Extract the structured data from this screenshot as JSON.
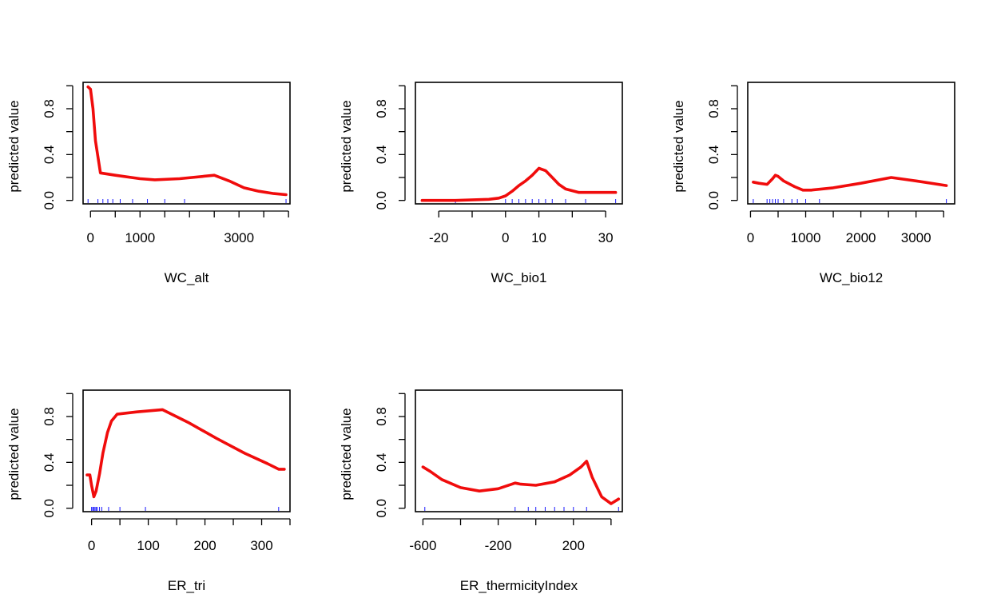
{
  "colors": {
    "curve": "#f00c0c",
    "rug": "#1a1aff",
    "axis": "#000000"
  },
  "chart_data": [
    {
      "type": "line",
      "xlabel": "WC_alt",
      "ylabel": "predicted value",
      "xlim": [
        -150,
        4030
      ],
      "ylim": [
        -0.03,
        1.03
      ],
      "xticks": [
        0,
        500,
        1000,
        1500,
        2000,
        2500,
        3000,
        3500,
        4000
      ],
      "xtick_labels": [
        "0",
        "",
        "1000",
        "",
        "",
        "",
        "3000",
        "",
        ""
      ],
      "yticks": [
        0,
        0.2,
        0.4,
        0.6,
        0.8,
        1.0
      ],
      "ytick_labels": [
        "0.0",
        "",
        "0.4",
        "",
        "0.8",
        ""
      ],
      "x": [
        -50,
        0,
        50,
        100,
        200,
        500,
        1000,
        1300,
        1800,
        2500,
        2800,
        3100,
        3400,
        3700,
        3950
      ],
      "y": [
        0.99,
        0.97,
        0.8,
        0.52,
        0.24,
        0.22,
        0.19,
        0.18,
        0.19,
        0.22,
        0.17,
        0.11,
        0.08,
        0.06,
        0.05
      ],
      "rug": [
        -50,
        150,
        250,
        350,
        450,
        600,
        850,
        1150,
        1500,
        1900,
        3950
      ]
    },
    {
      "type": "line",
      "xlabel": "WC_bio1",
      "ylabel": "predicted value",
      "xlim": [
        -27,
        35
      ],
      "ylim": [
        -0.03,
        1.03
      ],
      "xticks": [
        -20,
        -10,
        0,
        10,
        20,
        30
      ],
      "xtick_labels": [
        "-20",
        "",
        "0",
        "10",
        "",
        "30"
      ],
      "yticks": [
        0,
        0.2,
        0.4,
        0.6,
        0.8,
        1.0
      ],
      "ytick_labels": [
        "0.0",
        "",
        "0.4",
        "",
        "0.8",
        ""
      ],
      "x": [
        -25,
        -15,
        -5,
        -2,
        0,
        2,
        4,
        6,
        8,
        10,
        12,
        14,
        16,
        18,
        22,
        26,
        30,
        33
      ],
      "y": [
        0.0,
        0.0,
        0.01,
        0.02,
        0.04,
        0.08,
        0.13,
        0.17,
        0.22,
        0.28,
        0.26,
        0.2,
        0.14,
        0.1,
        0.07,
        0.07,
        0.07,
        0.07
      ],
      "rug": [
        -15,
        0,
        2,
        4,
        6,
        8,
        10,
        12,
        14,
        18,
        24,
        33
      ]
    },
    {
      "type": "line",
      "xlabel": "WC_bio12",
      "ylabel": "predicted value",
      "xlim": [
        -50,
        3700
      ],
      "ylim": [
        -0.03,
        1.03
      ],
      "xticks": [
        0,
        500,
        1000,
        1500,
        2000,
        2500,
        3000,
        3500
      ],
      "xtick_labels": [
        "0",
        "",
        "1000",
        "",
        "2000",
        "",
        "3000",
        ""
      ],
      "yticks": [
        0,
        0.2,
        0.4,
        0.6,
        0.8,
        1.0
      ],
      "ytick_labels": [
        "0.0",
        "",
        "0.4",
        "",
        "0.8",
        ""
      ],
      "x": [
        50,
        150,
        300,
        400,
        450,
        500,
        600,
        800,
        950,
        1100,
        1500,
        2000,
        2550,
        3000,
        3550
      ],
      "y": [
        0.16,
        0.15,
        0.14,
        0.19,
        0.22,
        0.21,
        0.17,
        0.12,
        0.09,
        0.09,
        0.11,
        0.15,
        0.2,
        0.17,
        0.13
      ],
      "rug": [
        50,
        300,
        350,
        400,
        450,
        500,
        600,
        750,
        850,
        1000,
        1250,
        3550
      ]
    },
    {
      "type": "line",
      "xlabel": "ER_tri",
      "ylabel": "predicted value",
      "xlim": [
        -15,
        350
      ],
      "ylim": [
        -0.03,
        1.03
      ],
      "xticks": [
        0,
        50,
        100,
        150,
        200,
        250,
        300,
        350
      ],
      "xtick_labels": [
        "0",
        "",
        "100",
        "",
        "200",
        "",
        "300",
        ""
      ],
      "yticks": [
        0,
        0.2,
        0.4,
        0.6,
        0.8,
        1.0
      ],
      "ytick_labels": [
        "0.0",
        "",
        "0.4",
        "",
        "0.8",
        ""
      ],
      "x": [
        -8,
        -3,
        0,
        4,
        8,
        14,
        20,
        28,
        35,
        45,
        80,
        125,
        170,
        220,
        270,
        310,
        330,
        340
      ],
      "y": [
        0.29,
        0.29,
        0.2,
        0.1,
        0.15,
        0.3,
        0.48,
        0.66,
        0.76,
        0.82,
        0.84,
        0.86,
        0.75,
        0.61,
        0.48,
        0.39,
        0.34,
        0.34
      ],
      "rug": [
        0,
        2,
        4,
        6,
        8,
        10,
        14,
        18,
        30,
        50,
        95,
        330
      ]
    },
    {
      "type": "line",
      "xlabel": "ER_thermicityIndex",
      "ylabel": "predicted value",
      "xlim": [
        -640,
        460
      ],
      "ylim": [
        -0.03,
        1.03
      ],
      "xticks": [
        -600,
        -400,
        -200,
        0,
        200,
        400
      ],
      "xtick_labels": [
        "-600",
        "",
        "-200",
        "",
        "200",
        ""
      ],
      "yticks": [
        0,
        0.2,
        0.4,
        0.6,
        0.8,
        1.0
      ],
      "ytick_labels": [
        "0.0",
        "",
        "0.4",
        "",
        "0.8",
        ""
      ],
      "x": [
        -600,
        -560,
        -500,
        -400,
        -300,
        -200,
        -110,
        -80,
        0,
        100,
        180,
        240,
        270,
        300,
        350,
        400,
        440
      ],
      "y": [
        0.36,
        0.32,
        0.25,
        0.18,
        0.15,
        0.17,
        0.22,
        0.21,
        0.2,
        0.23,
        0.29,
        0.36,
        0.41,
        0.27,
        0.1,
        0.04,
        0.08
      ],
      "rug": [
        -590,
        -110,
        -40,
        0,
        50,
        100,
        150,
        200,
        270,
        440
      ]
    }
  ]
}
